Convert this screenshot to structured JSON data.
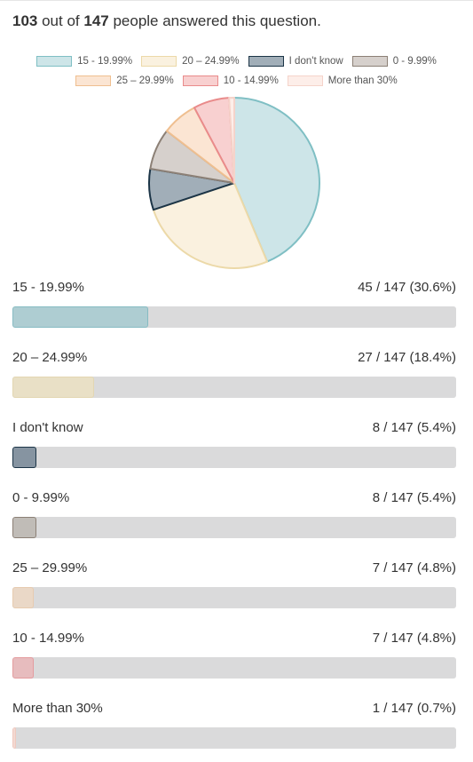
{
  "summary": {
    "answered": "103",
    "text_mid": " out of ",
    "total": "147",
    "text_end": " people answered this question."
  },
  "legend": {
    "row1": [
      {
        "label": "15 - 19.99%",
        "fill": "#cde5e8",
        "stroke": "#7fbfc4"
      },
      {
        "label": "20 – 24.99%",
        "fill": "#faf1df",
        "stroke": "#ecd9a8"
      },
      {
        "label": "I don't know",
        "fill": "#a1aeb8",
        "stroke": "#1c3547"
      },
      {
        "label": "0 - 9.99%",
        "fill": "#d6d0cc",
        "stroke": "#8c8076"
      }
    ],
    "row2": [
      {
        "label": "25 – 29.99%",
        "fill": "#fbe5d3",
        "stroke": "#efbf90"
      },
      {
        "label": "10 - 14.99%",
        "fill": "#f8d0d0",
        "stroke": "#e98b8b"
      },
      {
        "label": "More than 30%",
        "fill": "#fdeee9",
        "stroke": "#f5d3ca"
      }
    ]
  },
  "bars": [
    {
      "label": "15 - 19.99%",
      "value": "45 / 147 (30.6%)",
      "fill": "#aecdd2",
      "stroke": "#87bcc3"
    },
    {
      "label": "20 – 24.99%",
      "value": "27 / 147 (18.4%)",
      "fill": "#e9e0c6",
      "stroke": "#e3d7b2"
    },
    {
      "label": "I don't know",
      "value": "8 / 147 (5.4%)",
      "fill": "#8694a1",
      "stroke": "#1c3547"
    },
    {
      "label": "0 - 9.99%",
      "value": "8 / 147 (5.4%)",
      "fill": "#c0bcb7",
      "stroke": "#8c8076"
    },
    {
      "label": "25 – 29.99%",
      "value": "7 / 147 (4.8%)",
      "fill": "#ead8c7",
      "stroke": "#e7cbb0"
    },
    {
      "label": "10 - 14.99%",
      "value": "7 / 147 (4.8%)",
      "fill": "#e7bcbe",
      "stroke": "#e49c9f"
    },
    {
      "label": "More than 30%",
      "value": "1 / 147 (0.7%)",
      "fill": "#f3d9d2",
      "stroke": "#f0c9bf"
    }
  ],
  "chart_data": {
    "type": "pie",
    "categories": [
      "15 - 19.99%",
      "20 – 24.99%",
      "I don't know",
      "0 - 9.99%",
      "25 – 29.99%",
      "10 - 14.99%",
      "More than 30%"
    ],
    "values": [
      45,
      27,
      8,
      8,
      7,
      7,
      1
    ],
    "total_respondents": 147,
    "answered": 103,
    "percent_labels": [
      "30.6%",
      "18.4%",
      "5.4%",
      "5.4%",
      "4.8%",
      "4.8%",
      "0.7%"
    ],
    "legend_position": "top",
    "colors": [
      "#cde5e8",
      "#faf1df",
      "#a1aeb8",
      "#d6d0cc",
      "#fbe5d3",
      "#f8d0d0",
      "#fdeee9"
    ],
    "stroke_colors": [
      "#7fbfc4",
      "#ecd9a8",
      "#1c3547",
      "#8c8076",
      "#efbf90",
      "#e98b8b",
      "#f5d3ca"
    ]
  }
}
